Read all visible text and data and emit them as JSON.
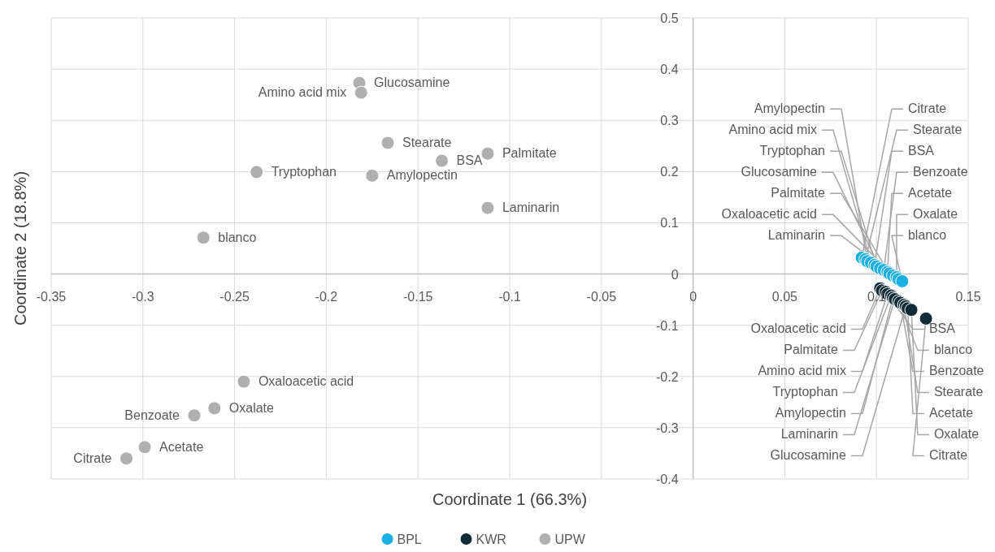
{
  "chart_data": {
    "type": "scatter",
    "xlabel": "Coordinate 1 (66.3%)",
    "ylabel": "Coordinate 2 (18.8%)",
    "xlim": [
      -0.35,
      0.15
    ],
    "xticks": [
      -0.35,
      -0.3,
      -0.25,
      -0.2,
      -0.15,
      -0.1,
      -0.05,
      0,
      0.05,
      0.1,
      0.15
    ],
    "ylim": [
      -0.4,
      0.5
    ],
    "yticks": [
      -0.4,
      -0.3,
      -0.2,
      -0.1,
      0,
      0.1,
      0.2,
      0.3,
      0.4,
      0.5
    ],
    "grid": true,
    "legend": "bottom",
    "marker": "circle",
    "series": [
      {
        "name": "BPL",
        "color": "#1ab0e4",
        "x": [
          0.092,
          0.094,
          0.095,
          0.097,
          0.099,
          0.1,
          0.102,
          0.104,
          0.106,
          0.107,
          0.109,
          0.111,
          0.112,
          0.114
        ],
        "values": [
          0.032,
          0.029,
          0.025,
          0.022,
          0.018,
          0.015,
          0.011,
          0.008,
          0.004,
          0.001,
          -0.003,
          -0.006,
          -0.01,
          -0.014
        ],
        "value_labels": [
          "Citrate",
          "Stearate",
          "Amylopectin",
          "Amino acid mix",
          "BSA",
          "Tryptophan",
          "Glucosamine",
          "Benzoate",
          "Acetate",
          "Palmitate",
          "Oxaloacetic acid",
          "Oxalate",
          "Laminarin",
          "blanco"
        ]
      },
      {
        "name": "KWR",
        "color": "#0e2b37",
        "x": [
          0.102,
          0.103,
          0.105,
          0.106,
          0.108,
          0.109,
          0.11,
          0.112,
          0.113,
          0.115,
          0.116,
          0.117,
          0.127,
          0.119
        ],
        "values": [
          -0.028,
          -0.032,
          -0.035,
          -0.039,
          -0.042,
          -0.046,
          -0.049,
          -0.053,
          -0.056,
          -0.06,
          -0.063,
          -0.067,
          -0.087,
          -0.07
        ],
        "value_labels": [
          "Oxaloacetic acid",
          "Palmitate",
          "BSA",
          "Amino acid mix",
          "Tryptophan",
          "Amylopectin",
          "Laminarin",
          "blanco",
          "Benzoate",
          "Stearate",
          "Glucosamine",
          "Acetate",
          "Citrate",
          "Oxalate"
        ]
      },
      {
        "name": "UPW",
        "color": "#afafaf",
        "x": [
          -0.182,
          -0.181,
          -0.1665,
          -0.238,
          -0.175,
          -0.137,
          -0.112,
          -0.112,
          -0.267,
          -0.245,
          -0.261,
          -0.272,
          -0.299,
          -0.309
        ],
        "values": [
          0.373,
          0.354,
          0.256,
          0.199,
          0.192,
          0.221,
          0.235,
          0.129,
          0.071,
          -0.21,
          -0.262,
          -0.276,
          -0.338,
          -0.36
        ],
        "value_labels": [
          "Glucosamine",
          "Amino acid mix",
          "Stearate",
          "Tryptophan",
          "Amylopectin",
          "BSA",
          "Palmitate",
          "Laminarin",
          "blanco",
          "Oxaloacetic acid",
          "Oxalate",
          "Benzoate",
          "Acetate",
          "Citrate"
        ]
      }
    ]
  }
}
